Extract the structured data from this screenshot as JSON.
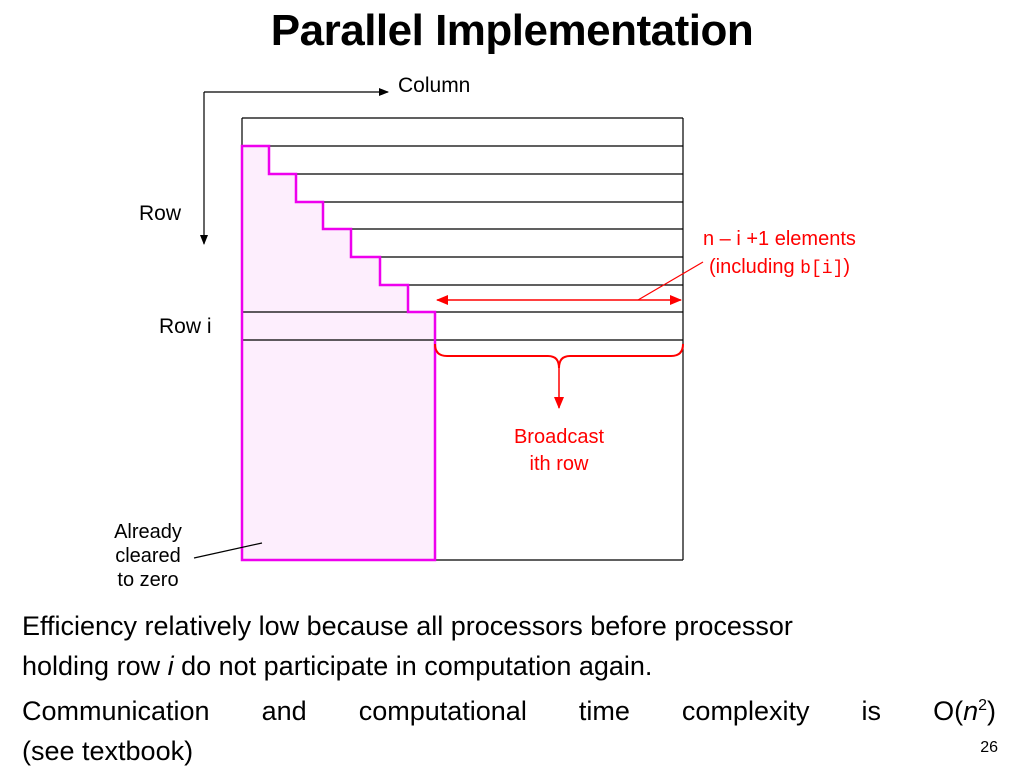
{
  "slide": {
    "title": "Parallel Implementation",
    "page_number": "26"
  },
  "diagram": {
    "column_label": "Column",
    "row_label": "Row",
    "row_i_label": "Row i",
    "elements_label_line1": "n – i +1 elements",
    "elements_label_line2_prefix": "(including ",
    "elements_label_line2_code": "b[i]",
    "elements_label_line2_suffix": ")",
    "broadcast_line1": "Broadcast",
    "broadcast_line2": "ith row",
    "cleared_line1": "Already",
    "cleared_line2": "cleared",
    "cleared_line3": "to zero",
    "colors": {
      "cleared_region_stroke": "#ee00ee",
      "cleared_region_fill": "#fdeefd",
      "annotation": "#ff0000",
      "grid": "#000000"
    }
  },
  "body": {
    "line1": "Efficiency relatively low because all processors before processor",
    "line2_prefix": "holding row ",
    "line2_var": "i",
    "line2_suffix": " do not participate in computation again.",
    "line3_prefix": "Communication and computational time complexity is O(",
    "line3_var": "n",
    "line3_sup": "2",
    "line3_suffix": ")",
    "line4": "(see textbook)"
  }
}
